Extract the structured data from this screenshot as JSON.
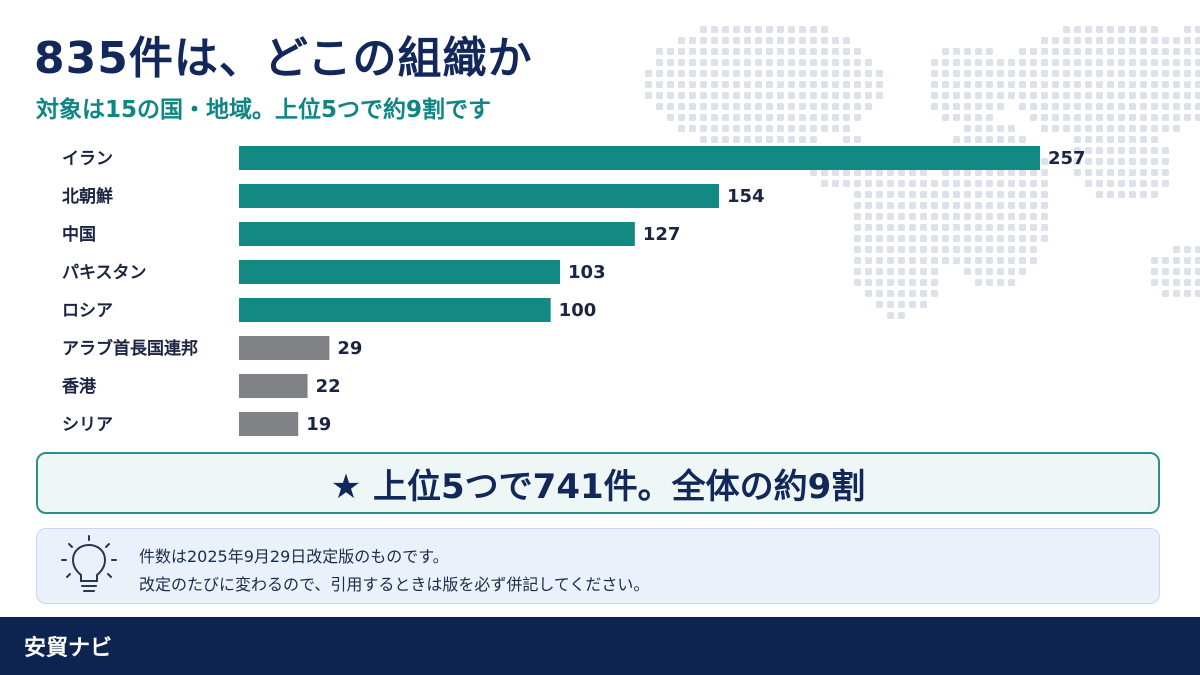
{
  "header": {
    "title": "835件は、どこの組織か",
    "subtitle": "対象は15の国・地域。上位5つで約9割です"
  },
  "chart_data": {
    "type": "bar",
    "orientation": "horizontal",
    "categories": [
      "イラン",
      "北朝鮮",
      "中国",
      "パキスタン",
      "ロシア",
      "アラブ首長国連邦",
      "香港",
      "シリア"
    ],
    "values": [
      257,
      154,
      127,
      103,
      100,
      29,
      22,
      19
    ],
    "highlight_count": 5,
    "colors": {
      "highlight": "#138984",
      "other": "#808285"
    },
    "xlim": [
      0,
      257
    ],
    "grid": false
  },
  "summary": {
    "text": "★ 上位5つで741件。全体の約9割"
  },
  "note": {
    "icon": "lightbulb-icon",
    "lines": [
      "件数は2025年9月29日改定版のものです。",
      "改定のたびに変わるので、引用するときは版を必ず併記してください。"
    ]
  },
  "footer": {
    "brand": "安貿ナビ"
  }
}
